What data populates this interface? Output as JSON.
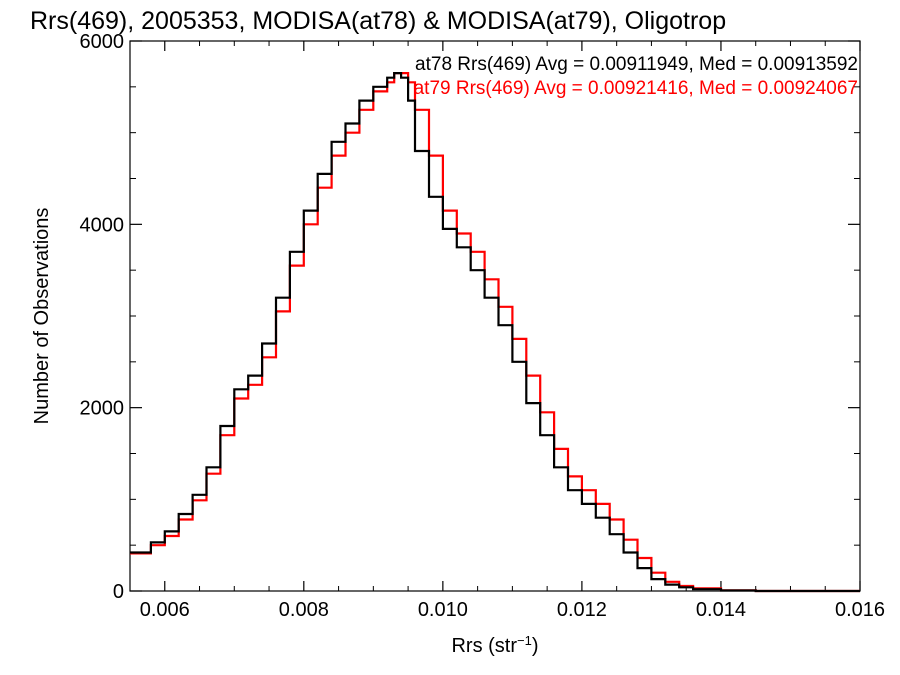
{
  "chart_data": {
    "type": "line",
    "step": true,
    "title": "Rrs(469), 2005353, MODISA(at78) & MODISA(at79), Oligotrop",
    "xlabel": "Rrs (str",
    "xlabel_sup": "−1",
    "xlabel_end": ")",
    "ylabel": "Number of Observations",
    "xlim": [
      0.0055,
      0.016
    ],
    "ylim": [
      0,
      6000
    ],
    "x_ticks": [
      {
        "value": 0.006,
        "label": "0.006"
      },
      {
        "value": 0.008,
        "label": "0.008"
      },
      {
        "value": 0.01,
        "label": "0.010"
      },
      {
        "value": 0.012,
        "label": "0.012"
      },
      {
        "value": 0.014,
        "label": "0.014"
      },
      {
        "value": 0.016,
        "label": "0.016"
      }
    ],
    "y_ticks": [
      {
        "value": 0,
        "label": "0"
      },
      {
        "value": 2000,
        "label": "2000"
      },
      {
        "value": 4000,
        "label": "4000"
      },
      {
        "value": 6000,
        "label": "6000"
      }
    ],
    "legend_placement": "top-right",
    "series": [
      {
        "name": "at78",
        "legend": "at78 Rrs(469) Avg = 0.00911949, Med = 0.00913592",
        "color": "#000000",
        "points": [
          [
            0.0055,
            420
          ],
          [
            0.0058,
            530
          ],
          [
            0.006,
            650
          ],
          [
            0.0062,
            840
          ],
          [
            0.0064,
            1050
          ],
          [
            0.0066,
            1350
          ],
          [
            0.0068,
            1800
          ],
          [
            0.007,
            2200
          ],
          [
            0.0072,
            2350
          ],
          [
            0.0074,
            2700
          ],
          [
            0.0076,
            3200
          ],
          [
            0.0078,
            3700
          ],
          [
            0.008,
            4150
          ],
          [
            0.0082,
            4550
          ],
          [
            0.0084,
            4900
          ],
          [
            0.0086,
            5100
          ],
          [
            0.0088,
            5350
          ],
          [
            0.009,
            5500
          ],
          [
            0.0092,
            5600
          ],
          [
            0.0093,
            5650
          ],
          [
            0.0094,
            5600
          ],
          [
            0.0095,
            5350
          ],
          [
            0.0096,
            4800
          ],
          [
            0.0098,
            4300
          ],
          [
            0.01,
            3950
          ],
          [
            0.0102,
            3750
          ],
          [
            0.0104,
            3500
          ],
          [
            0.0106,
            3200
          ],
          [
            0.0108,
            2900
          ],
          [
            0.011,
            2500
          ],
          [
            0.0112,
            2050
          ],
          [
            0.0114,
            1700
          ],
          [
            0.0116,
            1350
          ],
          [
            0.0118,
            1100
          ],
          [
            0.012,
            950
          ],
          [
            0.0122,
            800
          ],
          [
            0.0124,
            620
          ],
          [
            0.0126,
            420
          ],
          [
            0.0128,
            250
          ],
          [
            0.013,
            130
          ],
          [
            0.0132,
            70
          ],
          [
            0.0134,
            40
          ],
          [
            0.0136,
            20
          ],
          [
            0.014,
            5
          ],
          [
            0.0145,
            0
          ],
          [
            0.016,
            0
          ]
        ]
      },
      {
        "name": "at79",
        "legend": "at79 Rrs(469) Avg = 0.00921416, Med = 0.00924067",
        "color": "#ff0000",
        "points": [
          [
            0.0055,
            410
          ],
          [
            0.0058,
            500
          ],
          [
            0.006,
            600
          ],
          [
            0.0062,
            780
          ],
          [
            0.0064,
            990
          ],
          [
            0.0066,
            1280
          ],
          [
            0.0068,
            1700
          ],
          [
            0.007,
            2100
          ],
          [
            0.0072,
            2250
          ],
          [
            0.0074,
            2550
          ],
          [
            0.0076,
            3050
          ],
          [
            0.0078,
            3550
          ],
          [
            0.008,
            4000
          ],
          [
            0.0082,
            4400
          ],
          [
            0.0084,
            4750
          ],
          [
            0.0086,
            5000
          ],
          [
            0.0088,
            5250
          ],
          [
            0.009,
            5450
          ],
          [
            0.0092,
            5550
          ],
          [
            0.0093,
            5650
          ],
          [
            0.0094,
            5650
          ],
          [
            0.0095,
            5550
          ],
          [
            0.0096,
            5250
          ],
          [
            0.0098,
            4750
          ],
          [
            0.01,
            4150
          ],
          [
            0.0102,
            3900
          ],
          [
            0.0104,
            3700
          ],
          [
            0.0106,
            3400
          ],
          [
            0.0108,
            3100
          ],
          [
            0.011,
            2750
          ],
          [
            0.0112,
            2350
          ],
          [
            0.0114,
            1950
          ],
          [
            0.0116,
            1550
          ],
          [
            0.0118,
            1250
          ],
          [
            0.012,
            1100
          ],
          [
            0.0122,
            950
          ],
          [
            0.0124,
            780
          ],
          [
            0.0126,
            560
          ],
          [
            0.0128,
            360
          ],
          [
            0.013,
            200
          ],
          [
            0.0132,
            100
          ],
          [
            0.0134,
            55
          ],
          [
            0.0136,
            30
          ],
          [
            0.014,
            8
          ],
          [
            0.0145,
            0
          ],
          [
            0.016,
            0
          ]
        ]
      }
    ]
  }
}
